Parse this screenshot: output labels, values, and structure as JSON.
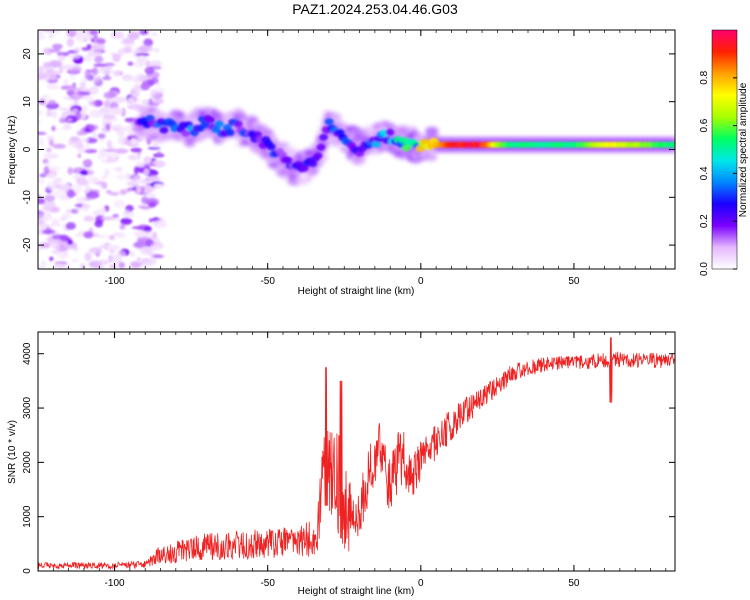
{
  "title": "PAZ1.2024.253.04.46.G03",
  "chart_data": [
    {
      "type": "heatmap",
      "xlabel": "Height of straight line (km)",
      "ylabel": "Frequency (Hz)",
      "xlim": [
        -125,
        83
      ],
      "ylim": [
        -25,
        25
      ],
      "xticks": [
        -100,
        -50,
        0,
        50
      ],
      "yticks": [
        -20,
        -10,
        0,
        10,
        20
      ],
      "colorbar": {
        "label": "Normalized spectral amplitude",
        "range": [
          0,
          1
        ],
        "ticks": [
          0.0,
          0.2,
          0.4,
          0.6,
          0.8
        ],
        "colors": [
          "#ffffff",
          "#e4b8ff",
          "#7a00ff",
          "#1a00ff",
          "#0088ff",
          "#00e8e8",
          "#00ff60",
          "#a8ff00",
          "#ffff00",
          "#ffa000",
          "#ff2000",
          "#ff0070"
        ]
      },
      "ridge": [
        [
          -90,
          6
        ],
        [
          -85,
          5
        ],
        [
          -80,
          5
        ],
        [
          -75,
          4
        ],
        [
          -70,
          6
        ],
        [
          -65,
          4
        ],
        [
          -60,
          5
        ],
        [
          -55,
          3
        ],
        [
          -50,
          1
        ],
        [
          -45,
          -2
        ],
        [
          -40,
          -4
        ],
        [
          -35,
          -3
        ],
        [
          -30,
          5
        ],
        [
          -25,
          3
        ],
        [
          -20,
          0
        ],
        [
          -15,
          2
        ],
        [
          -10,
          3
        ],
        [
          -5,
          1
        ],
        [
          0,
          1
        ],
        [
          10,
          1
        ],
        [
          20,
          1
        ],
        [
          30,
          1
        ],
        [
          50,
          1
        ],
        [
          83,
          1
        ]
      ],
      "ridge_amplitude": [
        [
          -90,
          0.3
        ],
        [
          -80,
          0.35
        ],
        [
          -70,
          0.35
        ],
        [
          -60,
          0.3
        ],
        [
          -50,
          0.3
        ],
        [
          -40,
          0.25
        ],
        [
          -30,
          0.3
        ],
        [
          -20,
          0.35
        ],
        [
          -10,
          0.4
        ],
        [
          0,
          0.7
        ],
        [
          10,
          0.95
        ],
        [
          20,
          1.0
        ],
        [
          25,
          0.7
        ],
        [
          30,
          0.55
        ],
        [
          50,
          0.55
        ],
        [
          62,
          0.75
        ],
        [
          83,
          0.55
        ]
      ],
      "noise_region": {
        "x": [
          -125,
          -88
        ],
        "y": [
          -25,
          25
        ]
      }
    },
    {
      "type": "line",
      "xlabel": "Height of straight line (km)",
      "ylabel": "SNR (10 * v/v)",
      "xlim": [
        -125,
        83
      ],
      "ylim": [
        0,
        4400
      ],
      "xticks": [
        -100,
        -50,
        0,
        50
      ],
      "yticks": [
        0,
        1000,
        2000,
        3000,
        4000
      ],
      "color": "#ee2222",
      "envelope": [
        {
          "x": -125,
          "y": 100,
          "amp": 60
        },
        {
          "x": -100,
          "y": 100,
          "amp": 60
        },
        {
          "x": -90,
          "y": 120,
          "amp": 70
        },
        {
          "x": -85,
          "y": 300,
          "amp": 180
        },
        {
          "x": -70,
          "y": 450,
          "amp": 250
        },
        {
          "x": -50,
          "y": 500,
          "amp": 280
        },
        {
          "x": -40,
          "y": 550,
          "amp": 300
        },
        {
          "x": -34,
          "y": 600,
          "amp": 350
        },
        {
          "x": -31,
          "y": 2300,
          "amp": 1100
        },
        {
          "x": -28,
          "y": 1800,
          "amp": 1000
        },
        {
          "x": -25,
          "y": 1200,
          "amp": 900
        },
        {
          "x": -22,
          "y": 900,
          "amp": 500
        },
        {
          "x": -18,
          "y": 1500,
          "amp": 600
        },
        {
          "x": -14,
          "y": 2200,
          "amp": 700
        },
        {
          "x": -10,
          "y": 1600,
          "amp": 500
        },
        {
          "x": -6,
          "y": 2200,
          "amp": 600
        },
        {
          "x": -3,
          "y": 1700,
          "amp": 400
        },
        {
          "x": 0,
          "y": 2000,
          "amp": 400
        },
        {
          "x": 5,
          "y": 2400,
          "amp": 350
        },
        {
          "x": 10,
          "y": 2700,
          "amp": 300
        },
        {
          "x": 20,
          "y": 3200,
          "amp": 220
        },
        {
          "x": 30,
          "y": 3650,
          "amp": 170
        },
        {
          "x": 40,
          "y": 3800,
          "amp": 140
        },
        {
          "x": 55,
          "y": 3850,
          "amp": 130
        },
        {
          "x": 62,
          "y": 3900,
          "amp": 150
        },
        {
          "x": 83,
          "y": 3870,
          "amp": 140
        }
      ],
      "features": [
        {
          "x": 62,
          "min": 3100,
          "max": 4300
        },
        {
          "x": -31,
          "min": 1200,
          "max": 3750
        },
        {
          "x": -26,
          "min": 600,
          "max": 3500
        }
      ]
    }
  ]
}
